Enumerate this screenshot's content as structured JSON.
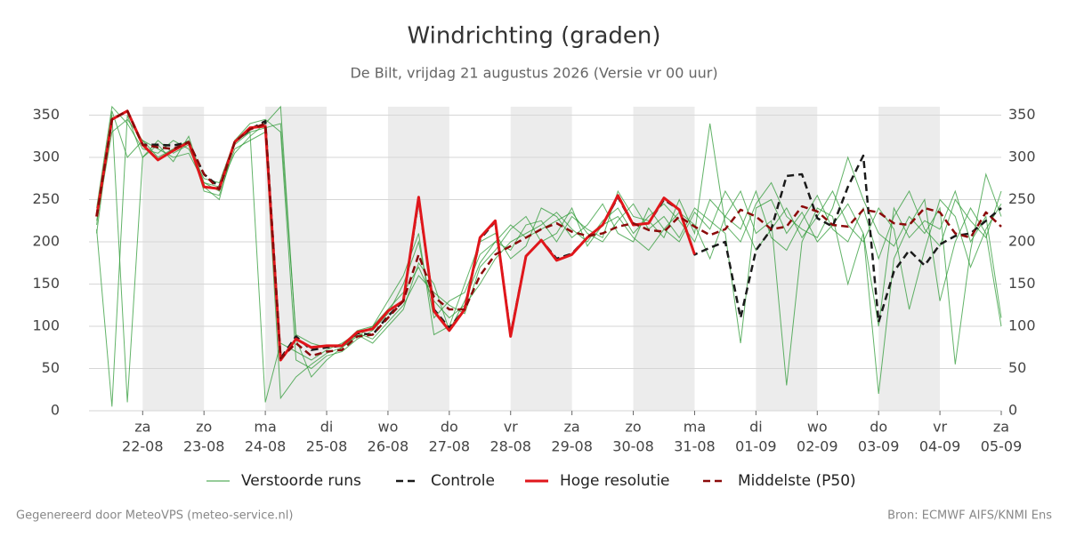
{
  "chart_data": {
    "type": "line",
    "title": "Windrichting (graden)",
    "subtitle": "De Bilt, vrijdag 21 augustus 2026 (Versie vr 00 uur)",
    "footer_left": "Gegenereerd door MeteoVPS (meteo-service.nl)",
    "footer_right": "Bron: ECMWF AIFS/KNMI Ens",
    "x": [
      0.25,
      0.5,
      0.75,
      1,
      1.25,
      1.5,
      1.75,
      2,
      2.25,
      2.5,
      2.75,
      3,
      3.25,
      3.5,
      3.75,
      4,
      4.25,
      4.5,
      4.75,
      5,
      5.25,
      5.5,
      5.75,
      6,
      6.25,
      6.5,
      6.75,
      7,
      7.25,
      7.5,
      7.75,
      8,
      8.25,
      8.5,
      8.75,
      9,
      9.25,
      9.5,
      9.75,
      10,
      10.25,
      10.5,
      10.75,
      11,
      11.25,
      11.5,
      11.75,
      12,
      12.25,
      12.5,
      12.75,
      13,
      13.25,
      13.5,
      13.75,
      14,
      14.25,
      14.5,
      14.75,
      15
    ],
    "xlim": [
      0.125,
      15
    ],
    "xticks": [
      {
        "value": 1,
        "label": "22-08",
        "day": "za"
      },
      {
        "value": 2,
        "label": "23-08",
        "day": "zo"
      },
      {
        "value": 3,
        "label": "24-08",
        "day": "ma"
      },
      {
        "value": 4,
        "label": "25-08",
        "day": "di"
      },
      {
        "value": 5,
        "label": "26-08",
        "day": "wo"
      },
      {
        "value": 6,
        "label": "27-08",
        "day": "do"
      },
      {
        "value": 7,
        "label": "28-08",
        "day": "vr"
      },
      {
        "value": 8,
        "label": "29-08",
        "day": "za"
      },
      {
        "value": 9,
        "label": "30-08",
        "day": "zo"
      },
      {
        "value": 10,
        "label": "31-08",
        "day": "ma"
      },
      {
        "value": 11,
        "label": "01-09",
        "day": "di"
      },
      {
        "value": 12,
        "label": "02-09",
        "day": "wo"
      },
      {
        "value": 13,
        "label": "03-09",
        "day": "do"
      },
      {
        "value": 14,
        "label": "04-09",
        "day": "vr"
      },
      {
        "value": 15,
        "label": "05-09",
        "day": "za"
      }
    ],
    "ylim": [
      0,
      360
    ],
    "yticks": [
      0,
      50,
      100,
      150,
      200,
      250,
      300,
      350
    ],
    "y2lim": [
      0,
      360
    ],
    "y2ticks": [
      0,
      50,
      100,
      150,
      200,
      250,
      300,
      350
    ],
    "grid": true,
    "legend": "bottom",
    "ensemble": {
      "name": "Verstoorde runs",
      "color": "#2e9a35",
      "members": [
        [
          220,
          355,
          300,
          320,
          310,
          300,
          305,
          270,
          260,
          315,
          330,
          335,
          340,
          90,
          80,
          75,
          78,
          95,
          100,
          120,
          140,
          170,
          130,
          110,
          125,
          150,
          180,
          200,
          210,
          220,
          235,
          215,
          200,
          225,
          240,
          210,
          230,
          245,
          225,
          200,
          250,
          230,
          215,
          260,
          205,
          190,
          225,
          255,
          215,
          200,
          240,
          180,
          230,
          260,
          215,
          195,
          250,
          225,
          205,
          260
        ],
        [
          215,
          5,
          350,
          300,
          320,
          305,
          315,
          265,
          250,
          320,
          330,
          10,
          80,
          70,
          60,
          72,
          80,
          92,
          85,
          105,
          125,
          160,
          140,
          125,
          115,
          170,
          190,
          215,
          230,
          200,
          210,
          240,
          195,
          220,
          230,
          205,
          190,
          215,
          235,
          220,
          180,
          230,
          260,
          210,
          225,
          30,
          200,
          240,
          230,
          150,
          210,
          20,
          180,
          220,
          250,
          130,
          200,
          240,
          210,
          100
        ],
        [
          240,
          360,
          340,
          310,
          305,
          320,
          310,
          275,
          270,
          320,
          340,
          345,
          330,
          60,
          50,
          65,
          70,
          85,
          95,
          115,
          150,
          200,
          110,
          130,
          140,
          185,
          200,
          190,
          220,
          225,
          200,
          230,
          215,
          205,
          260,
          230,
          225,
          205,
          250,
          210,
          340,
          220,
          200,
          245,
          270,
          230,
          215,
          205,
          240,
          300,
          250,
          210,
          195,
          230,
          210,
          240,
          55,
          190,
          280,
          230
        ],
        [
          225,
          330,
          345,
          320,
          300,
          310,
          320,
          260,
          255,
          310,
          320,
          330,
          15,
          40,
          55,
          68,
          75,
          88,
          100,
          130,
          160,
          210,
          90,
          100,
          150,
          200,
          210,
          180,
          195,
          240,
          230,
          205,
          220,
          245,
          210,
          200,
          240,
          215,
          200,
          235,
          215,
          260,
          230,
          190,
          215,
          240,
          205,
          230,
          260,
          220,
          200,
          240,
          215,
          120,
          190,
          250,
          230,
          170,
          215,
          245
        ],
        [
          210,
          350,
          10,
          300,
          315,
          295,
          325,
          270,
          265,
          305,
          325,
          340,
          360,
          85,
          40,
          60,
          75,
          90,
          80,
          100,
          120,
          175,
          150,
          95,
          130,
          175,
          200,
          220,
          205,
          215,
          225,
          235,
          210,
          200,
          225,
          245,
          215,
          230,
          205,
          240,
          225,
          210,
          80,
          240,
          250,
          210,
          235,
          200,
          220,
          245,
          210,
          100,
          240,
          205,
          225,
          215,
          260,
          200,
          230,
          110
        ]
      ]
    },
    "series": [
      {
        "name": "Controle",
        "color": "#1a1a1a",
        "dash": true,
        "values": [
          230,
          345,
          355,
          315,
          315,
          314,
          318,
          280,
          265,
          318,
          333,
          343,
          62,
          88,
          72,
          75,
          77,
          92,
          90,
          112,
          130,
          250,
          120,
          98,
          120,
          203,
          224,
          90,
          183,
          202,
          180,
          186,
          205,
          220,
          253,
          220,
          222,
          250,
          238,
          185,
          193,
          200,
          110,
          190,
          215,
          278,
          280,
          228,
          218,
          265,
          302,
          105,
          165,
          190,
          172,
          197,
          207,
          210,
          225,
          240
        ]
      },
      {
        "name": "Hoge resolutie",
        "color": "#e0161b",
        "dash": false,
        "values": [
          230,
          345,
          355,
          315,
          297,
          308,
          318,
          265,
          263,
          318,
          335,
          337,
          60,
          85,
          75,
          77,
          77,
          93,
          97,
          118,
          130,
          253,
          118,
          95,
          120,
          205,
          225,
          88,
          183,
          202,
          178,
          185,
          205,
          220,
          255,
          220,
          222,
          252,
          238,
          185,
          null,
          null,
          null,
          null,
          null,
          null,
          null,
          null,
          null,
          null,
          null,
          null,
          null,
          null,
          null,
          null,
          null,
          null,
          null,
          null
        ]
      },
      {
        "name": "Middelste (P50)",
        "color": "#8b0a0a",
        "dash": true,
        "values": [
          230,
          345,
          355,
          315,
          312,
          310,
          318,
          280,
          262,
          318,
          333,
          340,
          62,
          80,
          65,
          70,
          72,
          88,
          90,
          110,
          130,
          185,
          135,
          120,
          120,
          160,
          185,
          195,
          205,
          215,
          222,
          212,
          207,
          210,
          218,
          222,
          214,
          212,
          230,
          218,
          208,
          215,
          238,
          230,
          215,
          218,
          242,
          236,
          220,
          218,
          238,
          235,
          222,
          220,
          240,
          235,
          210,
          205,
          235,
          218
        ]
      }
    ]
  }
}
